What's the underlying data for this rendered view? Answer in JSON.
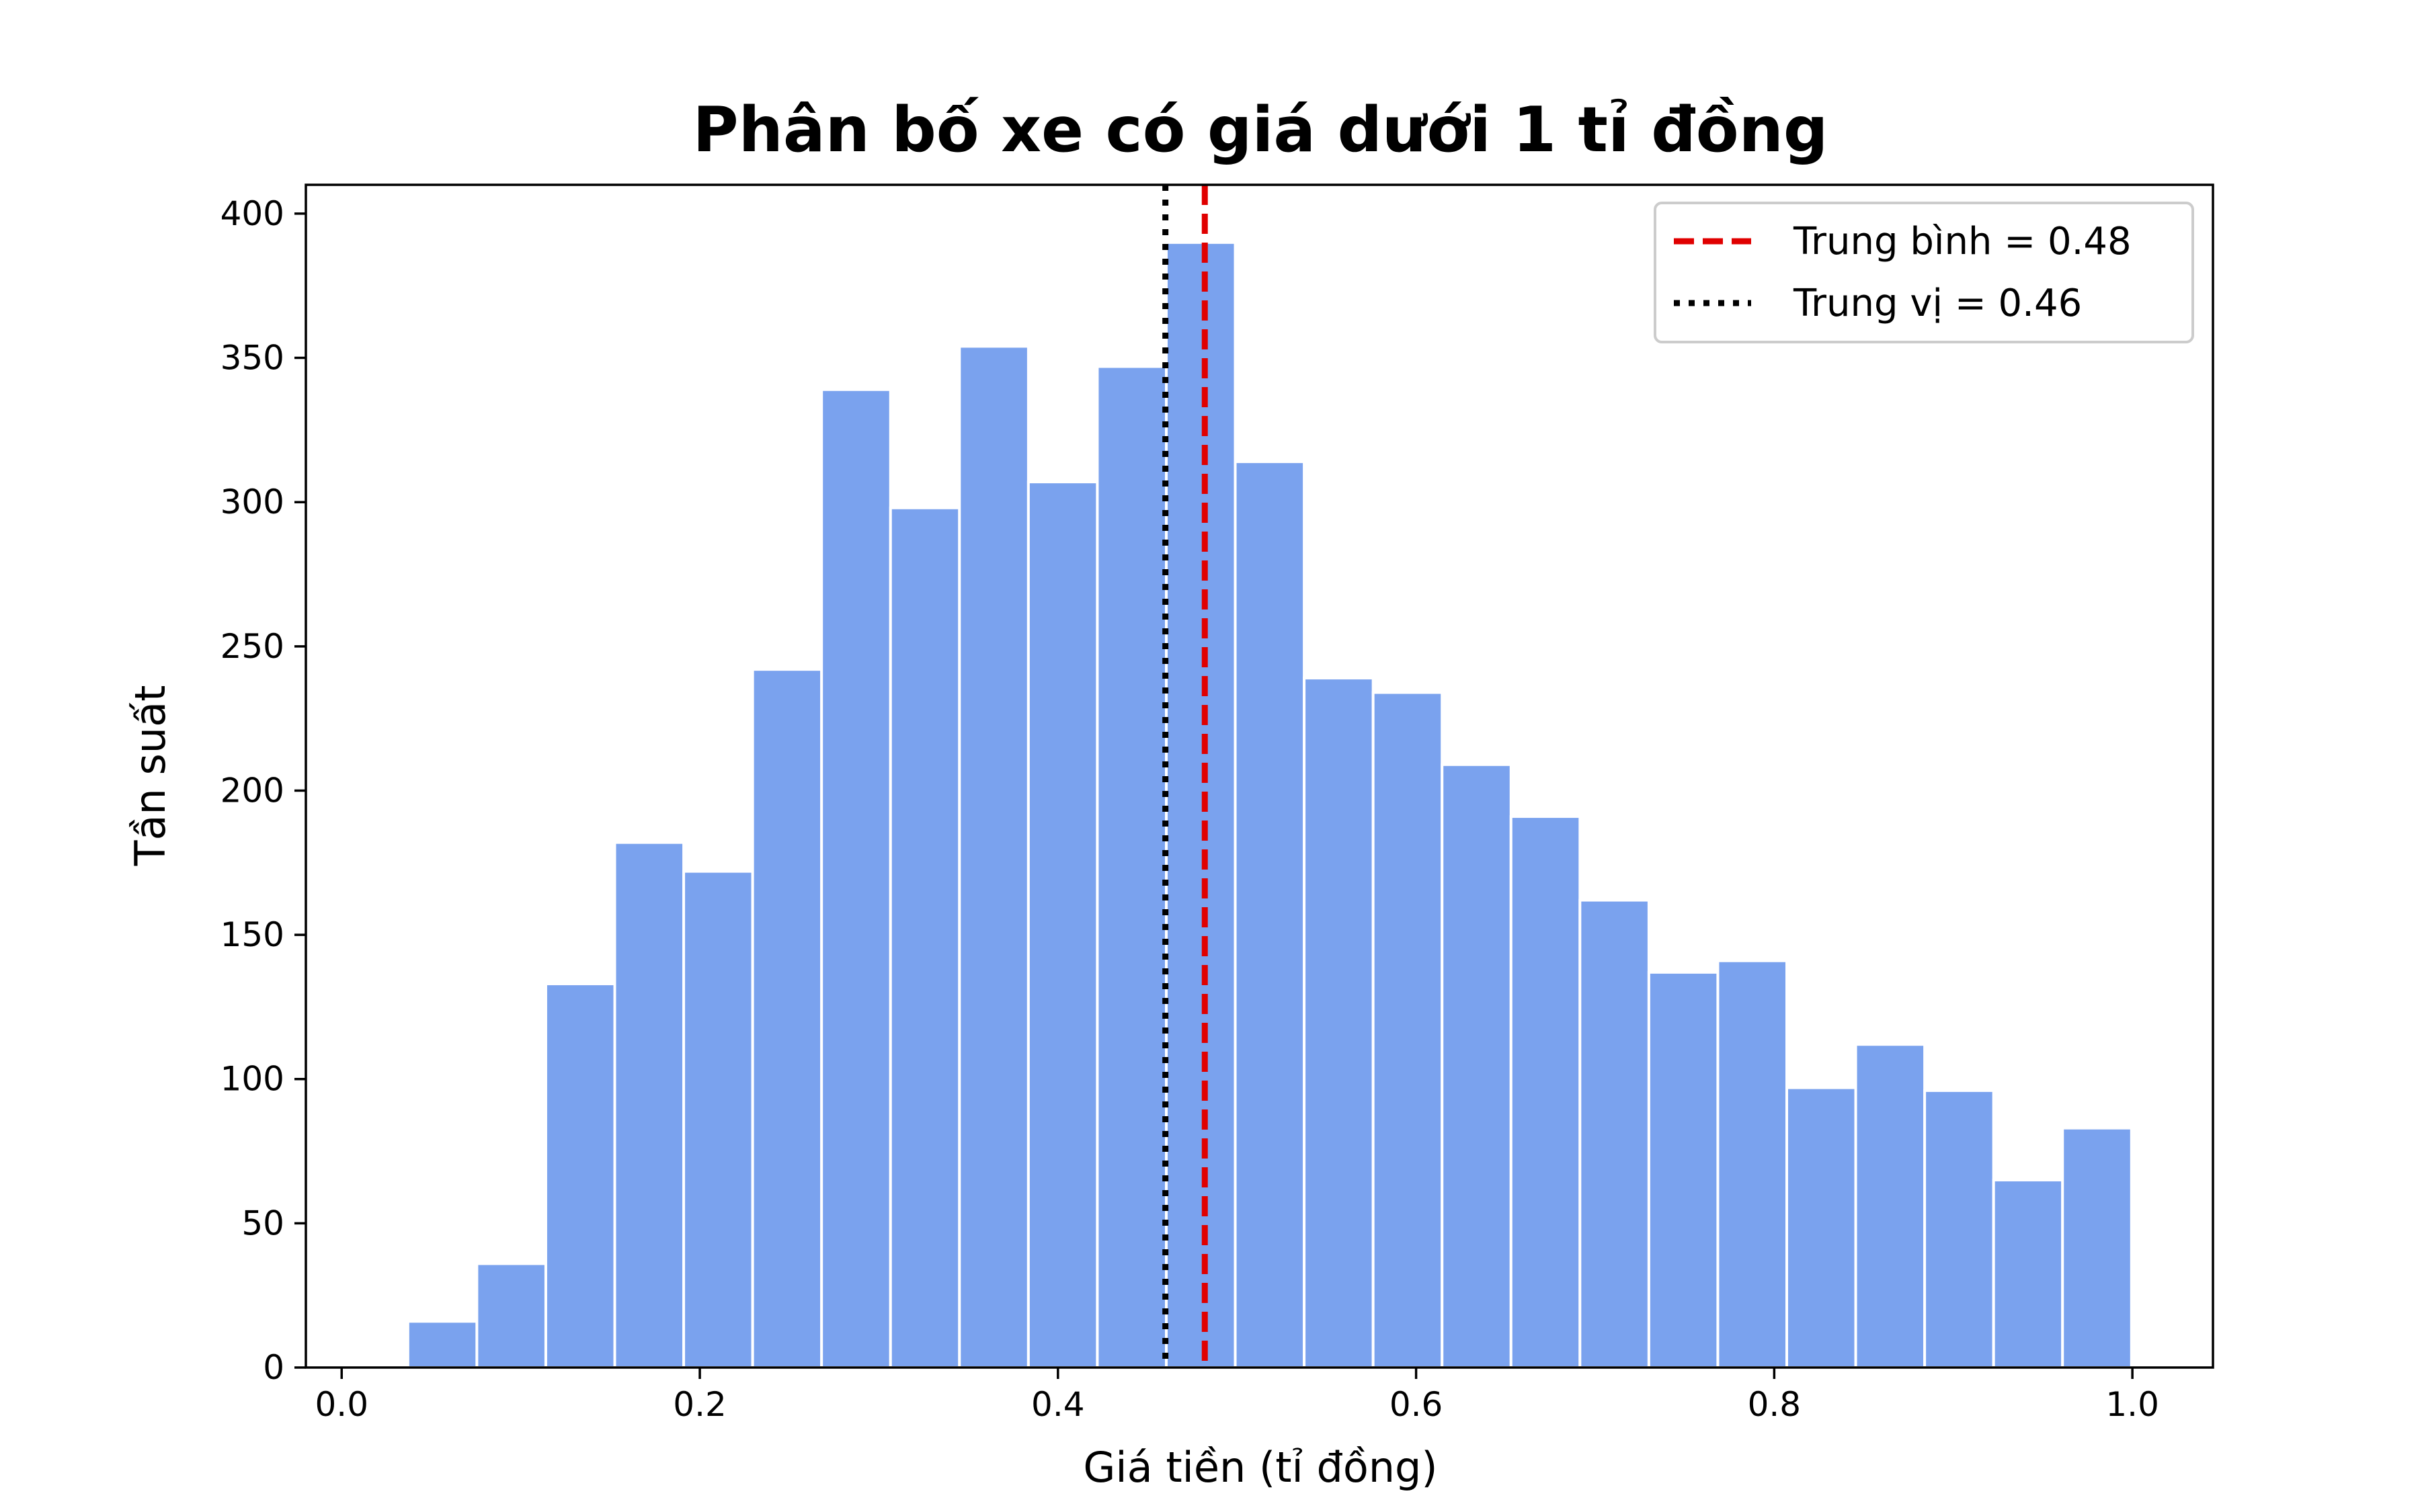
{
  "chart_data": {
    "type": "bar",
    "title": "Phân bố xe có giá dưới 1 tỉ đồng",
    "xlabel": "Giá tiền (tỉ đồng)",
    "ylabel": "Tần suất",
    "xlim": [
      -0.02,
      1.045
    ],
    "ylim": [
      0,
      410
    ],
    "xticks": [
      0.0,
      0.2,
      0.4,
      0.6,
      0.8,
      1.0
    ],
    "xtick_labels": [
      "0.0",
      "0.2",
      "0.4",
      "0.6",
      "0.8",
      "1.0"
    ],
    "yticks": [
      0,
      50,
      100,
      150,
      200,
      250,
      300,
      350,
      400
    ],
    "ytick_labels": [
      "0",
      "50",
      "100",
      "150",
      "200",
      "250",
      "300",
      "350",
      "400"
    ],
    "bin_edges": [
      0.037,
      0.0755,
      0.114,
      0.1525,
      0.191,
      0.2295,
      0.268,
      0.3065,
      0.345,
      0.3835,
      0.422,
      0.4605,
      0.499,
      0.5375,
      0.576,
      0.6145,
      0.653,
      0.6915,
      0.73,
      0.7685,
      0.807,
      0.8455,
      0.884,
      0.9225,
      0.961,
      0.9995
    ],
    "counts": [
      16,
      36,
      133,
      182,
      172,
      242,
      339,
      298,
      354,
      307,
      347,
      390,
      314,
      239,
      234,
      209,
      191,
      162,
      137,
      141,
      97,
      112,
      96,
      65,
      83
    ],
    "bar_color": "#7aa2ee",
    "vlines": [
      {
        "label": "Trung bình = 0.48",
        "x": 0.482,
        "color": "#e00000",
        "style": "dashed"
      },
      {
        "label": "Trung vị = 0.46",
        "x": 0.46,
        "color": "#000000",
        "style": "dotted"
      }
    ],
    "legend_position": "top-right",
    "grid": false
  }
}
